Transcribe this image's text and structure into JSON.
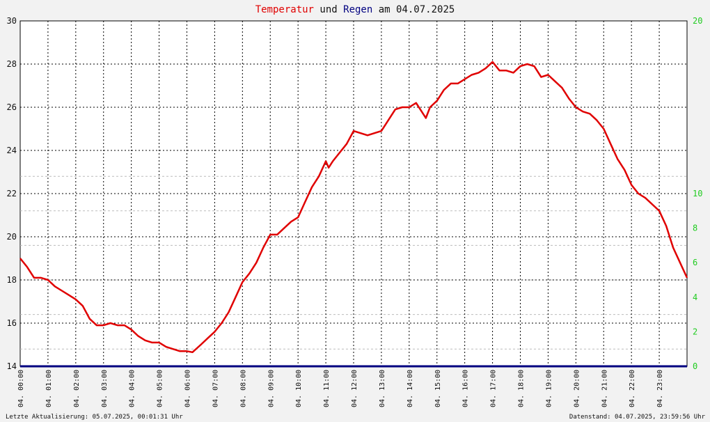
{
  "title": {
    "part1": "Temperatur",
    "part2": " und ",
    "part3": "Regen",
    "part4": " am 04.07.2025"
  },
  "colors": {
    "temperature": "#e00000",
    "rain": "#000080",
    "right_axis": "#22cc22",
    "grid": "#000000",
    "minor_grid": "#bbbbbb",
    "background": "#ffffff"
  },
  "footer": {
    "left": "Letzte Aktualisierung: 05.07.2025, 00:01:31 Uhr",
    "right": "Datenstand: 04.07.2025, 23:59:56 Uhr"
  },
  "chart_data": {
    "type": "line",
    "grid": true,
    "x_ticks": [
      "04. 00:00",
      "04. 01:00",
      "04. 02:00",
      "04. 03:00",
      "04. 04:00",
      "04. 05:00",
      "04. 06:00",
      "04. 07:00",
      "04. 08:00",
      "04. 09:00",
      "04. 10:00",
      "04. 11:00",
      "04. 12:00",
      "04. 13:00",
      "04. 14:00",
      "04. 15:00",
      "04. 16:00",
      "04. 17:00",
      "04. 18:00",
      "04. 19:00",
      "04. 20:00",
      "04. 21:00",
      "04. 22:00",
      "04. 23:00"
    ],
    "x_range_hours": [
      0,
      24
    ],
    "y_left": {
      "range": [
        14,
        30
      ],
      "ticks": [
        "14",
        "16",
        "18",
        "20",
        "22",
        "24",
        "26",
        "28",
        "30"
      ]
    },
    "y_right": {
      "range": [
        0,
        20
      ],
      "ticks": [
        "0",
        "2",
        "4",
        "6",
        "8",
        "10",
        "20"
      ]
    },
    "series": [
      {
        "name": "Temperatur",
        "axis": "left",
        "x": [
          0,
          0.25,
          0.5,
          0.75,
          1.0,
          1.25,
          1.5,
          1.75,
          2.0,
          2.25,
          2.5,
          2.75,
          3.0,
          3.25,
          3.5,
          3.75,
          4.0,
          4.25,
          4.5,
          4.75,
          5.0,
          5.25,
          5.5,
          5.75,
          6.0,
          6.2,
          6.5,
          6.75,
          7.0,
          7.25,
          7.5,
          7.75,
          8.0,
          8.25,
          8.5,
          8.75,
          9.0,
          9.25,
          9.5,
          9.75,
          10.0,
          10.25,
          10.5,
          10.75,
          11.0,
          11.1,
          11.25,
          11.5,
          11.75,
          12.0,
          12.25,
          12.5,
          12.75,
          13.0,
          13.25,
          13.5,
          13.75,
          14.0,
          14.25,
          14.5,
          14.6,
          14.75,
          15.0,
          15.25,
          15.5,
          15.75,
          16.0,
          16.25,
          16.5,
          16.75,
          17.0,
          17.25,
          17.5,
          17.75,
          18.0,
          18.25,
          18.5,
          18.75,
          19.0,
          19.25,
          19.5,
          19.75,
          20.0,
          20.25,
          20.5,
          20.75,
          21.0,
          21.25,
          21.5,
          21.75,
          22.0,
          22.25,
          22.5,
          22.75,
          23.0,
          23.25,
          23.5,
          23.75,
          24.0
        ],
        "values": [
          19.0,
          18.6,
          18.1,
          18.1,
          18.0,
          17.7,
          17.5,
          17.3,
          17.1,
          16.8,
          16.2,
          15.9,
          15.9,
          16.0,
          15.9,
          15.9,
          15.7,
          15.4,
          15.2,
          15.1,
          15.1,
          14.9,
          14.8,
          14.7,
          14.7,
          14.65,
          15.0,
          15.3,
          15.6,
          16.0,
          16.5,
          17.2,
          17.9,
          18.3,
          18.8,
          19.5,
          20.1,
          20.1,
          20.4,
          20.7,
          20.9,
          21.6,
          22.3,
          22.8,
          23.5,
          23.2,
          23.5,
          23.9,
          24.3,
          24.9,
          24.8,
          24.7,
          24.8,
          24.9,
          25.4,
          25.9,
          26.0,
          26.0,
          26.2,
          25.7,
          25.5,
          26.0,
          26.3,
          26.8,
          27.1,
          27.1,
          27.3,
          27.5,
          27.6,
          27.8,
          28.1,
          27.7,
          27.7,
          27.6,
          27.9,
          28.0,
          27.9,
          27.4,
          27.5,
          27.2,
          26.9,
          26.4,
          26.0,
          25.8,
          25.7,
          25.4,
          25.0,
          24.3,
          23.6,
          23.1,
          22.4,
          22.0,
          21.8,
          21.5,
          21.2,
          20.5,
          19.5,
          18.8,
          18.1
        ]
      },
      {
        "name": "Regen",
        "axis": "right",
        "x": [
          0,
          24
        ],
        "values": [
          0,
          0
        ]
      }
    ]
  }
}
